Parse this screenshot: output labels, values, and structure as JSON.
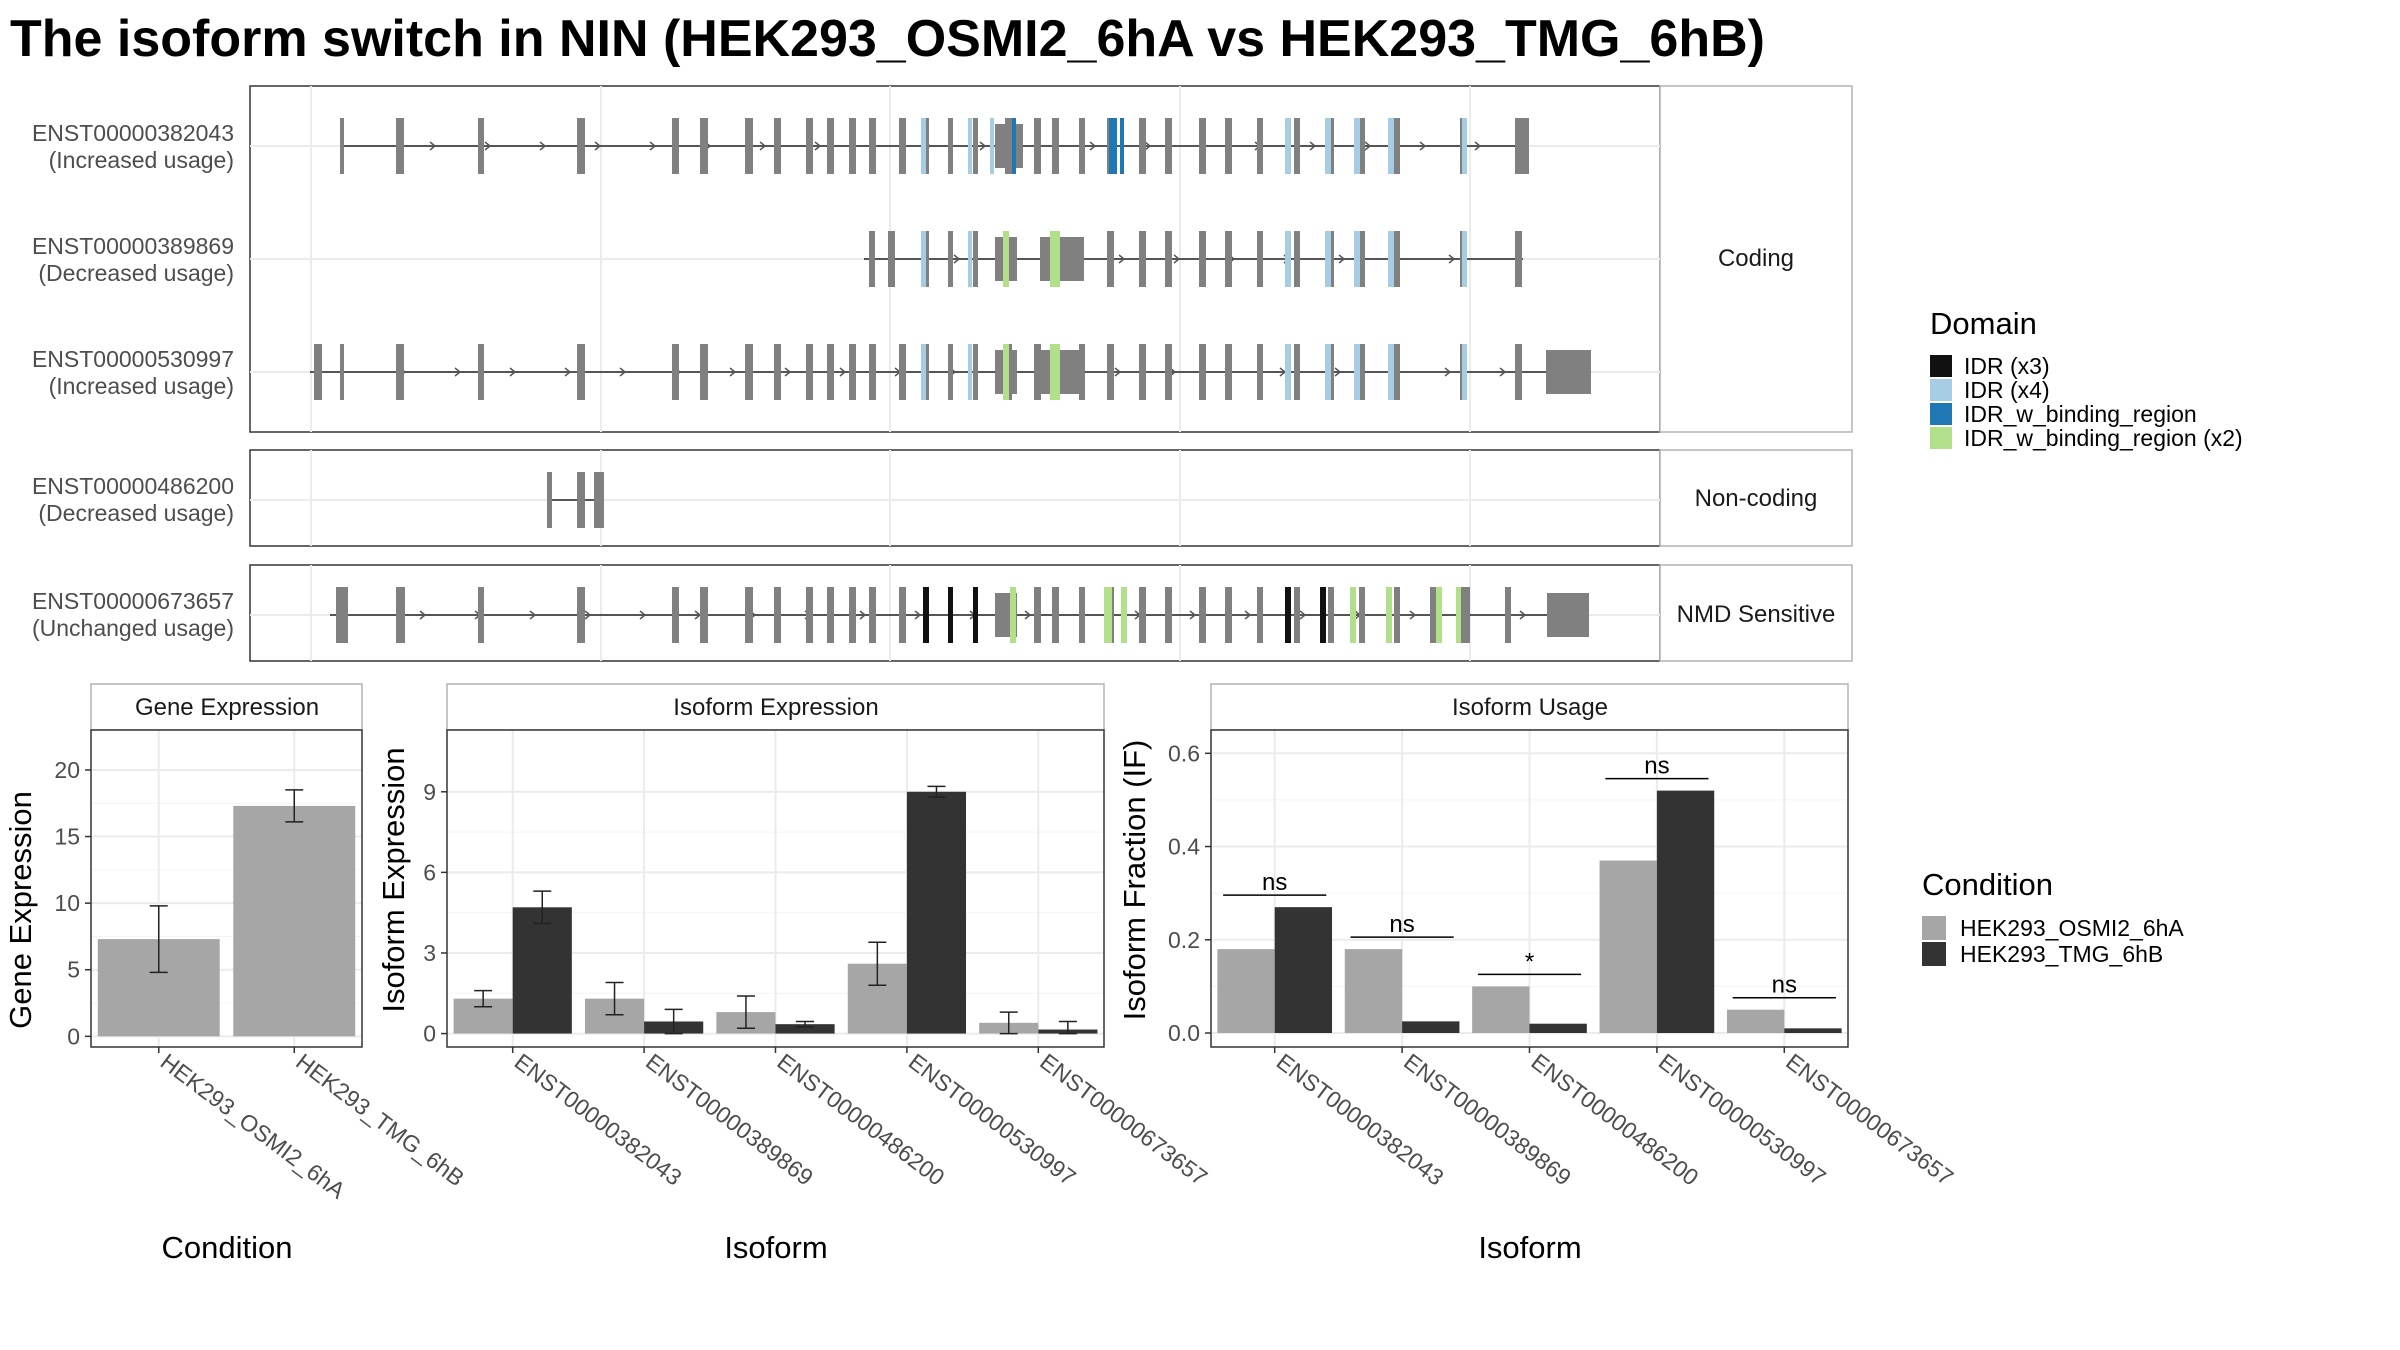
{
  "title": "The isoform switch in NIN (HEK293_OSMI2_6hA vs HEK293_TMG_6hB)",
  "colors": {
    "exon": "#808080",
    "idr_x3": "#111111",
    "idr_x4": "#a6cde3",
    "idr_binding": "#1f78b4",
    "idr_binding_x2": "#b2df8a",
    "cond_a": "#a6a6a6",
    "cond_b": "#333333"
  },
  "structure": {
    "categories": [
      "Coding",
      "Non-coding",
      "NMD Sensitive"
    ],
    "transcripts": [
      {
        "id": "ENST00000382043",
        "usage": "(Increased usage)",
        "category": "Coding"
      },
      {
        "id": "ENST00000389869",
        "usage": "(Decreased usage)",
        "category": "Coding"
      },
      {
        "id": "ENST00000530997",
        "usage": "(Increased usage)",
        "category": "Coding"
      },
      {
        "id": "ENST00000486200",
        "usage": "(Decreased usage)",
        "category": "Non-coding"
      },
      {
        "id": "ENST00000673657",
        "usage": "(Unchanged usage)",
        "category": "NMD Sensitive"
      }
    ]
  },
  "domain_legend": {
    "title": "Domain",
    "entries": [
      {
        "label": "IDR (x3)",
        "color": "#111111"
      },
      {
        "label": "IDR (x4)",
        "color": "#a6cde3"
      },
      {
        "label": "IDR_w_binding_region",
        "color": "#1f78b4"
      },
      {
        "label": "IDR_w_binding_region (x2)",
        "color": "#b2df8a"
      }
    ]
  },
  "condition_legend": {
    "title": "Condition",
    "entries": [
      {
        "label": "HEK293_OSMI2_6hA",
        "color": "#a6a6a6"
      },
      {
        "label": "HEK293_TMG_6hB",
        "color": "#333333"
      }
    ]
  },
  "chart_data": [
    {
      "type": "bar",
      "title": "Gene Expression",
      "xlabel": "Condition",
      "ylabel": "Gene Expression",
      "ylim": [
        -0.8,
        23
      ],
      "yticks": [
        0,
        5,
        10,
        15,
        20
      ],
      "categories": [
        "HEK293_OSMI2_6hA",
        "HEK293_TMG_6hB"
      ],
      "values": [
        7.3,
        17.3
      ],
      "errors": [
        [
          4.8,
          9.8
        ],
        [
          16.1,
          18.5
        ]
      ]
    },
    {
      "type": "bar",
      "title": "Isoform Expression",
      "xlabel": "Isoform",
      "ylabel": "Isoform Expression",
      "ylim": [
        -0.5,
        11.3
      ],
      "yticks": [
        0,
        3,
        6,
        9
      ],
      "categories": [
        "ENST00000382043",
        "ENST00000389869",
        "ENST00000486200",
        "ENST00000530997",
        "ENST00000673657"
      ],
      "series": [
        {
          "name": "HEK293_OSMI2_6hA",
          "values": [
            1.3,
            1.3,
            0.8,
            2.6,
            0.4
          ],
          "errors": [
            [
              1.0,
              1.6
            ],
            [
              0.7,
              1.9
            ],
            [
              0.2,
              1.4
            ],
            [
              1.8,
              3.4
            ],
            [
              0.0,
              0.8
            ]
          ]
        },
        {
          "name": "HEK293_TMG_6hB",
          "values": [
            4.7,
            0.45,
            0.35,
            9.0,
            0.15
          ],
          "errors": [
            [
              4.1,
              5.3
            ],
            [
              0.0,
              0.9
            ],
            [
              0.25,
              0.45
            ],
            [
              8.8,
              9.2
            ],
            [
              0.0,
              0.45
            ]
          ]
        }
      ]
    },
    {
      "type": "bar",
      "title": "Isoform Usage",
      "xlabel": "Isoform",
      "ylabel": "Isoform Fraction (IF)",
      "ylim": [
        -0.03,
        0.65
      ],
      "yticks": [
        0.0,
        0.2,
        0.4,
        0.6
      ],
      "ytick_labels": [
        "0.0",
        "0.2",
        "0.4",
        "0.6"
      ],
      "categories": [
        "ENST00000382043",
        "ENST00000389869",
        "ENST00000486200",
        "ENST00000530997",
        "ENST00000673657"
      ],
      "series": [
        {
          "name": "HEK293_OSMI2_6hA",
          "values": [
            0.18,
            0.18,
            0.1,
            0.37,
            0.05
          ]
        },
        {
          "name": "HEK293_TMG_6hB",
          "values": [
            0.27,
            0.025,
            0.02,
            0.52,
            0.01
          ]
        }
      ],
      "annotations": [
        "ns",
        "ns",
        "*",
        "ns",
        "ns"
      ]
    }
  ]
}
